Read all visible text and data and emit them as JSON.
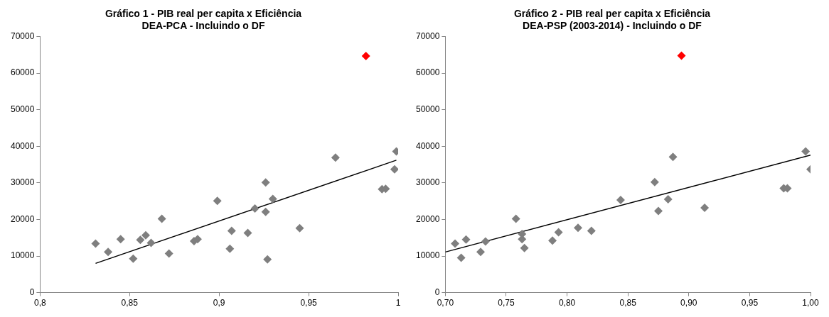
{
  "chart_data": [
    {
      "type": "scatter",
      "title": "Gráfico 1 - PIB real per capita x Eficiência DEA-PCA - Incluindo o DF",
      "legend": false,
      "grid": false,
      "xlim": [
        0.8,
        1
      ],
      "xticks": [
        {
          "value": 0.8,
          "label": "0,8"
        },
        {
          "value": 0.85,
          "label": "0,85"
        },
        {
          "value": 0.9,
          "label": "0,9"
        },
        {
          "value": 0.95,
          "label": "0,95"
        },
        1
      ],
      "ylim": [
        0,
        70000
      ],
      "yticks": [
        0,
        10000,
        20000,
        30000,
        40000,
        50000,
        60000,
        70000
      ],
      "series": [
        {
          "color": "#7f7f7f",
          "marker": "diamond",
          "x": [
            0.831,
            0.838,
            0.845,
            0.852,
            0.856,
            0.859,
            0.862,
            0.868,
            0.872,
            0.886,
            0.888,
            0.899,
            0.906,
            0.907,
            0.916,
            0.92,
            0.926,
            0.926,
            0.927,
            0.93,
            0.945,
            0.965,
            0.991,
            0.993,
            0.998,
            0.999
          ],
          "values": [
            13400,
            11100,
            14600,
            9300,
            14400,
            15700,
            13600,
            20200,
            10700,
            14100,
            14600,
            25100,
            12000,
            16900,
            16300,
            23000,
            22100,
            30100,
            9100,
            25600,
            17600,
            36900,
            28300,
            28400,
            33700,
            38600
          ]
        },
        {
          "color": "#ff0000",
          "marker": "diamond",
          "x": [
            0.982
          ],
          "values": [
            64700
          ]
        },
        {
          "type": "line",
          "color": "#000000",
          "marker": "none",
          "x": [
            0.831,
            0.999
          ],
          "values": [
            8000,
            36200
          ]
        }
      ]
    },
    {
      "type": "scatter",
      "title": "Gráfico 2 - PIB real per capita x Eficiência DEA-PSP (2003-2014) - Incluindo o DF",
      "legend": false,
      "grid": false,
      "xlim": [
        0.7,
        1
      ],
      "xticks": [
        {
          "value": 0.7,
          "label": "0,70"
        },
        {
          "value": 0.75,
          "label": "0,75"
        },
        {
          "value": 0.8,
          "label": "0,80"
        },
        {
          "value": 0.85,
          "label": "0,85"
        },
        {
          "value": 0.9,
          "label": "0,90"
        },
        {
          "value": 0.95,
          "label": "0,95"
        },
        {
          "value": 1,
          "label": "1,00"
        }
      ],
      "ylim": [
        0,
        70000
      ],
      "yticks": [
        0,
        10000,
        20000,
        30000,
        40000,
        50000,
        60000,
        70000
      ],
      "series": [
        {
          "color": "#7f7f7f",
          "marker": "diamond",
          "x": [
            0.708,
            0.713,
            0.717,
            0.729,
            0.733,
            0.758,
            0.763,
            0.763,
            0.765,
            0.788,
            0.793,
            0.809,
            0.82,
            0.844,
            0.872,
            0.875,
            0.883,
            0.887,
            0.913,
            0.978,
            0.981,
            0.996,
            1.0
          ],
          "values": [
            13400,
            9500,
            14500,
            11100,
            14000,
            20200,
            16000,
            14600,
            12200,
            14200,
            16500,
            17700,
            16900,
            25300,
            30200,
            22300,
            25500,
            37100,
            23200,
            28500,
            28500,
            38600,
            33700
          ]
        },
        {
          "color": "#ff0000",
          "marker": "diamond",
          "x": [
            0.894
          ],
          "values": [
            64800
          ]
        },
        {
          "type": "line",
          "color": "#000000",
          "marker": "none",
          "x": [
            0.7,
            1.0
          ],
          "values": [
            11100,
            37600
          ]
        }
      ]
    }
  ]
}
